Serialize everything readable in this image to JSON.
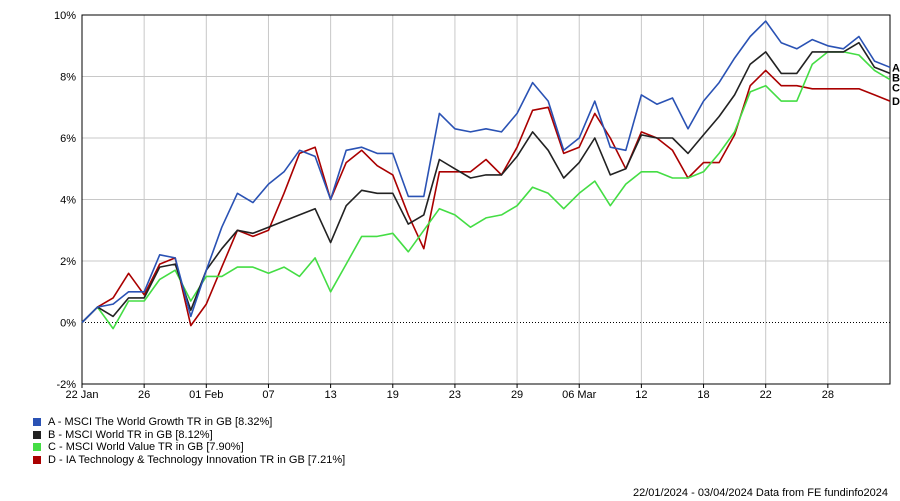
{
  "chart_data": {
    "type": "line",
    "ylim": [
      -2,
      10
    ],
    "y_ticks": [
      "-2%",
      "0%",
      "2%",
      "4%",
      "6%",
      "8%",
      "10%"
    ],
    "y_tick_values": [
      -2,
      0,
      2,
      4,
      6,
      8,
      10
    ],
    "x_tick_labels": [
      "22 Jan",
      "26",
      "01 Feb",
      "07",
      "13",
      "19",
      "23",
      "29",
      "06 Mar",
      "12",
      "18",
      "22",
      "28"
    ],
    "x_tick_positions": [
      0,
      4,
      8,
      12,
      16,
      20,
      24,
      28,
      32,
      36,
      40,
      44,
      48
    ],
    "zero_line": "dotted",
    "series": [
      {
        "name": "A - MSCI The World Growth TR in GB [8.32%]",
        "end_label": "A",
        "color": "#2a52b4",
        "values": [
          0,
          0.5,
          0.6,
          1.0,
          1.0,
          2.2,
          2.1,
          0.2,
          1.7,
          3.1,
          4.2,
          3.9,
          4.5,
          4.9,
          5.6,
          5.4,
          4.0,
          5.6,
          5.7,
          5.5,
          5.5,
          4.1,
          4.1,
          6.8,
          6.3,
          6.2,
          6.3,
          6.2,
          6.8,
          7.8,
          7.2,
          5.6,
          6.0,
          7.2,
          5.7,
          5.6,
          7.4,
          7.1,
          7.3,
          6.3,
          7.2,
          7.8,
          8.6,
          9.3,
          9.8,
          9.1,
          8.9,
          9.2,
          9.0,
          8.9,
          9.3,
          8.5,
          8.3
        ]
      },
      {
        "name": "B - MSCI World TR in GB [8.12%]",
        "end_label": "B",
        "color": "#222222",
        "values": [
          0,
          0.5,
          0.2,
          0.8,
          0.8,
          1.8,
          1.9,
          0.4,
          1.7,
          2.4,
          3.0,
          2.9,
          3.1,
          3.3,
          3.5,
          3.7,
          2.6,
          3.8,
          4.3,
          4.2,
          4.2,
          3.2,
          3.5,
          5.3,
          5.0,
          4.7,
          4.8,
          4.8,
          5.4,
          6.2,
          5.6,
          4.7,
          5.2,
          6.0,
          4.8,
          5.0,
          6.1,
          6.0,
          6.0,
          5.5,
          6.1,
          6.7,
          7.4,
          8.4,
          8.8,
          8.1,
          8.1,
          8.8,
          8.8,
          8.8,
          9.1,
          8.3,
          8.1
        ]
      },
      {
        "name": "C - MSCI World Value TR in GB [7.90%]",
        "end_label": "C",
        "color": "#44dd44",
        "values": [
          0,
          0.5,
          -0.2,
          0.7,
          0.7,
          1.4,
          1.7,
          0.7,
          1.5,
          1.5,
          1.8,
          1.8,
          1.6,
          1.8,
          1.5,
          2.1,
          1.0,
          1.9,
          2.8,
          2.8,
          2.9,
          2.3,
          3.0,
          3.7,
          3.5,
          3.1,
          3.4,
          3.5,
          3.8,
          4.4,
          4.2,
          3.7,
          4.2,
          4.6,
          3.8,
          4.5,
          4.9,
          4.9,
          4.7,
          4.7,
          4.9,
          5.5,
          6.2,
          7.5,
          7.7,
          7.2,
          7.2,
          8.4,
          8.8,
          8.8,
          8.7,
          8.2,
          7.9
        ]
      },
      {
        "name": "D - IA Technology & Technology Innovation TR in GB [7.21%]",
        "end_label": "D",
        "color": "#aa0000",
        "values": [
          0,
          0.5,
          0.8,
          1.6,
          0.9,
          1.9,
          2.1,
          -0.1,
          0.6,
          1.8,
          3.0,
          2.8,
          3.0,
          4.2,
          5.5,
          5.7,
          4.0,
          5.2,
          5.6,
          5.1,
          4.8,
          3.5,
          2.4,
          4.9,
          4.9,
          4.9,
          5.3,
          4.8,
          5.7,
          6.9,
          7.0,
          5.5,
          5.7,
          6.8,
          6.0,
          5.0,
          6.2,
          6.0,
          5.6,
          4.7,
          5.2,
          5.2,
          6.1,
          7.7,
          8.2,
          7.7,
          7.7,
          7.6,
          7.6,
          7.6,
          7.6,
          7.4,
          7.2
        ]
      }
    ]
  },
  "footer": "22/01/2024 - 03/04/2024 Data from FE fundinfo2024"
}
